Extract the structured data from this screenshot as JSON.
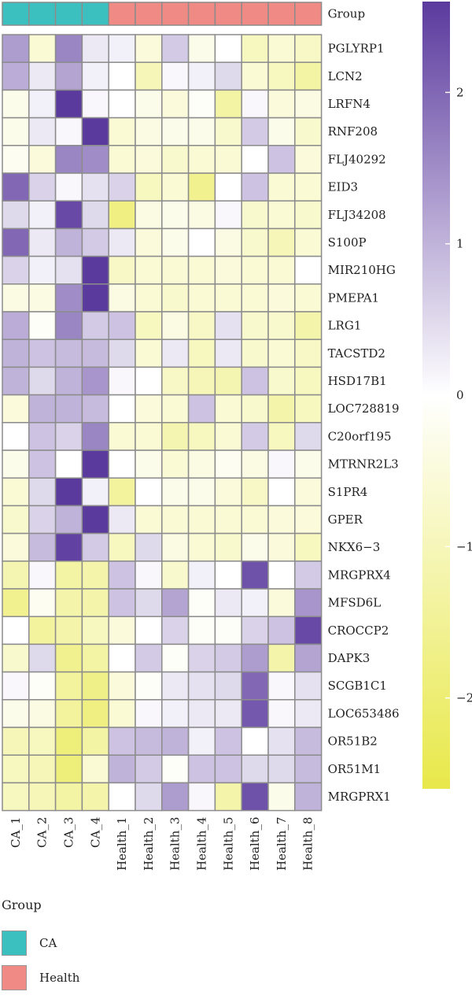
{
  "chart_data": {
    "type": "heatmap",
    "columns": [
      "CA_1",
      "CA_2",
      "CA_3",
      "CA_4",
      "Health_1",
      "Health_2",
      "Health_3",
      "Health_4",
      "Health_5",
      "Health_6",
      "Health_7",
      "Health_8"
    ],
    "column_groups": [
      "CA",
      "CA",
      "CA",
      "CA",
      "Health",
      "Health",
      "Health",
      "Health",
      "Health",
      "Health",
      "Health",
      "Health"
    ],
    "rows": [
      "PGLYRP1",
      "LCN2",
      "LRFN4",
      "RNF208",
      "FLJ40292",
      "EID3",
      "FLJ34208",
      "S100P",
      "MIR210HG",
      "PMEPA1",
      "LRG1",
      "TACSTD2",
      "HSD17B1",
      "LOC728819",
      "C20orf195",
      "MTRNR2L3",
      "S1PR4",
      "GPER",
      "NKX6−3",
      "MRGPRX4",
      "MFSD6L",
      "CROCCP2",
      "DAPK3",
      "SCGB1C1",
      "LOC653486",
      "OR51B2",
      "OR51M1",
      "MRGPRX1"
    ],
    "values": [
      [
        1.3,
        -0.6,
        1.6,
        0.3,
        0.2,
        -0.5,
        0.7,
        -0.3,
        0.0,
        -0.9,
        -0.6,
        -0.8
      ],
      [
        1.1,
        0.3,
        1.2,
        0.2,
        0.0,
        -1.0,
        0.1,
        0.2,
        0.5,
        -0.6,
        -0.9,
        -1.3
      ],
      [
        -0.3,
        0.2,
        2.6,
        0.1,
        0.0,
        -0.3,
        -0.5,
        -0.1,
        -1.3,
        0.1,
        -0.5,
        -0.4
      ],
      [
        -0.3,
        0.3,
        0.1,
        2.6,
        -0.6,
        -0.4,
        -0.3,
        -0.3,
        -0.7,
        0.7,
        -0.3,
        -0.7
      ],
      [
        -0.2,
        -0.5,
        1.6,
        1.5,
        -0.6,
        -0.5,
        -0.7,
        -0.6,
        -0.6,
        0.0,
        0.8,
        -0.5
      ],
      [
        2.0,
        0.6,
        0.1,
        0.4,
        0.6,
        -0.9,
        -0.6,
        -1.6,
        0.0,
        0.8,
        -0.6,
        -0.6
      ],
      [
        0.5,
        0.2,
        2.4,
        0.5,
        -1.8,
        -0.4,
        -0.3,
        -0.4,
        0.1,
        -0.7,
        -0.6,
        -0.7
      ],
      [
        2.0,
        0.3,
        1.0,
        0.7,
        0.3,
        -0.5,
        -0.3,
        0.0,
        -0.4,
        -0.7,
        -1.0,
        -0.6
      ],
      [
        0.6,
        0.2,
        0.4,
        2.7,
        -0.8,
        -0.6,
        -0.6,
        -0.6,
        -0.5,
        -0.6,
        -0.6,
        0.0
      ],
      [
        -0.4,
        -0.4,
        1.5,
        2.7,
        -0.4,
        -0.6,
        -0.7,
        -0.6,
        -0.6,
        -0.6,
        -0.5,
        -0.6
      ],
      [
        1.1,
        -0.1,
        1.6,
        0.7,
        0.8,
        -0.9,
        -0.4,
        -0.8,
        0.4,
        -0.7,
        -0.7,
        -1.2
      ],
      [
        1.0,
        0.8,
        0.9,
        0.9,
        0.5,
        -0.6,
        0.3,
        -0.9,
        0.3,
        -0.7,
        -0.6,
        -0.8
      ],
      [
        1.0,
        0.5,
        1.0,
        1.4,
        0.1,
        0.0,
        -0.8,
        -1.0,
        -1.1,
        0.8,
        -0.7,
        -0.9
      ],
      [
        -0.5,
        1.0,
        1.0,
        0.9,
        0.0,
        -0.5,
        -0.6,
        0.8,
        -0.6,
        -0.7,
        -1.2,
        -0.9
      ],
      [
        0.0,
        0.8,
        0.6,
        1.6,
        -0.6,
        -0.6,
        -1.1,
        -0.9,
        -0.6,
        0.7,
        -0.9,
        0.5
      ],
      [
        -0.3,
        0.8,
        0.0,
        2.7,
        0.0,
        -0.3,
        -0.6,
        -0.4,
        -0.2,
        -0.4,
        0.1,
        -0.3
      ],
      [
        -0.6,
        0.5,
        2.6,
        0.2,
        -1.4,
        0.0,
        -0.3,
        -0.3,
        -0.5,
        -0.8,
        0.0,
        -0.5
      ],
      [
        -0.7,
        0.6,
        1.0,
        2.7,
        0.3,
        -0.6,
        -0.6,
        -0.6,
        -0.6,
        -0.6,
        -0.5,
        -0.5
      ],
      [
        -0.5,
        0.9,
        2.5,
        0.7,
        -0.9,
        0.5,
        -0.4,
        -0.6,
        -0.7,
        -0.3,
        -0.5,
        -0.9
      ],
      [
        -1.1,
        0.1,
        -1.3,
        -1.2,
        0.8,
        0.1,
        -0.7,
        0.2,
        0.0,
        2.3,
        0.0,
        0.7
      ],
      [
        -1.6,
        -0.2,
        -1.2,
        -1.2,
        0.8,
        0.5,
        1.2,
        -0.1,
        0.3,
        0.2,
        -0.5,
        1.4
      ],
      [
        0.0,
        -1.4,
        -1.2,
        -0.9,
        -0.5,
        0.0,
        0.6,
        -0.1,
        -0.1,
        0.6,
        0.8,
        2.4
      ],
      [
        -0.7,
        0.5,
        -1.6,
        -1.3,
        0.0,
        0.7,
        -0.1,
        0.6,
        0.7,
        1.3,
        -1.2,
        1.2
      ],
      [
        0.1,
        -0.1,
        -1.4,
        -1.7,
        -0.5,
        -0.1,
        0.3,
        0.4,
        0.5,
        2.0,
        0.1,
        0.4
      ],
      [
        -0.3,
        -0.4,
        -1.4,
        -1.8,
        -0.6,
        0.1,
        0.2,
        0.3,
        0.3,
        2.2,
        0.1,
        0.3
      ],
      [
        -1.0,
        -0.9,
        -1.9,
        -1.3,
        0.8,
        0.9,
        1.0,
        0.2,
        0.8,
        0.0,
        0.4,
        0.9
      ],
      [
        -0.9,
        -1.0,
        -1.9,
        -0.6,
        1.0,
        0.7,
        -0.1,
        0.8,
        0.8,
        0.5,
        0.5,
        0.9
      ],
      [
        -0.9,
        -1.0,
        -1.3,
        -1.2,
        0.0,
        0.5,
        1.3,
        0.1,
        -1.2,
        2.3,
        -0.3,
        1.0
      ]
    ],
    "color_scale": {
      "min": -2.6,
      "mid": 0,
      "max": 2.6,
      "low_color": "#e8e84a",
      "mid_color": "#ffffff",
      "high_color": "#5b3a9e",
      "ticks": [
        2,
        1,
        0,
        -1,
        -2
      ],
      "tick_labels": [
        "2",
        "1",
        "0",
        "−1",
        "−2"
      ]
    },
    "group_annotation": {
      "title": "Group",
      "levels": [
        {
          "name": "CA",
          "color": "#3cbfbf"
        },
        {
          "name": "Health",
          "color": "#f08a84"
        }
      ]
    },
    "legend": {
      "position": "bottom-left",
      "title": "Group"
    },
    "grid": true,
    "cell_border_color": "#8c8c8c"
  }
}
